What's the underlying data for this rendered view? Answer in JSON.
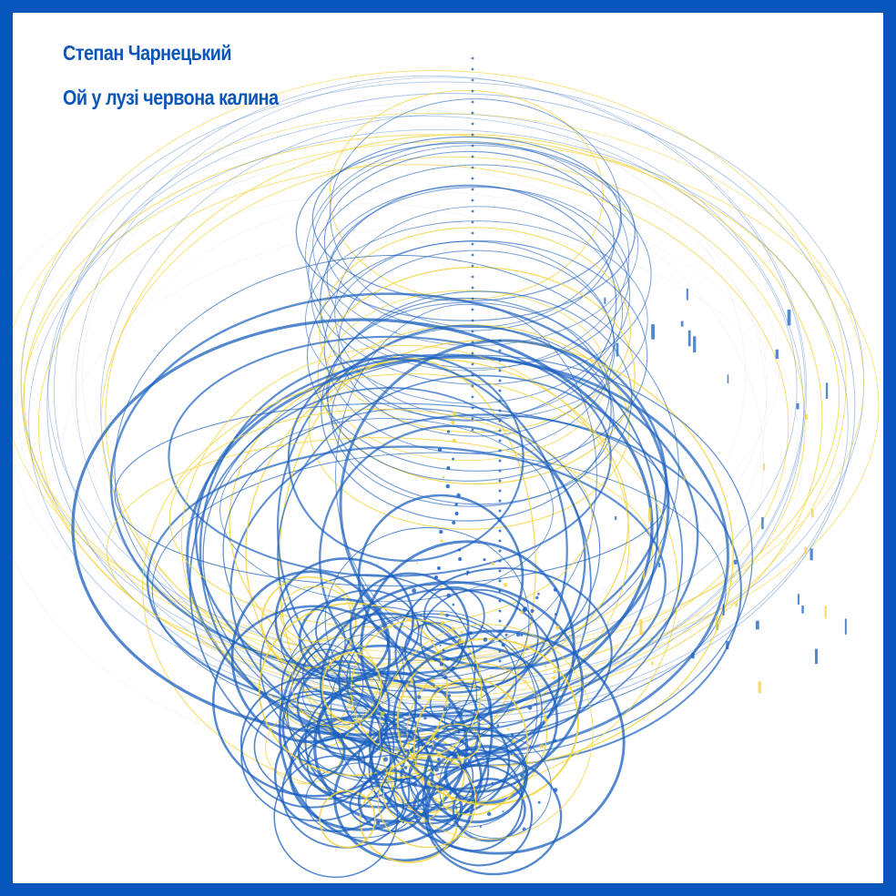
{
  "header": {
    "author": "Степан Чарнецький",
    "song_title": "Ой у лузі червона калина"
  },
  "colors": {
    "frame": "#0656bd",
    "background": "#ffffff",
    "blue": "#1a5fbf",
    "yellow": "#f3d33c",
    "title": "#0b56b8"
  }
}
